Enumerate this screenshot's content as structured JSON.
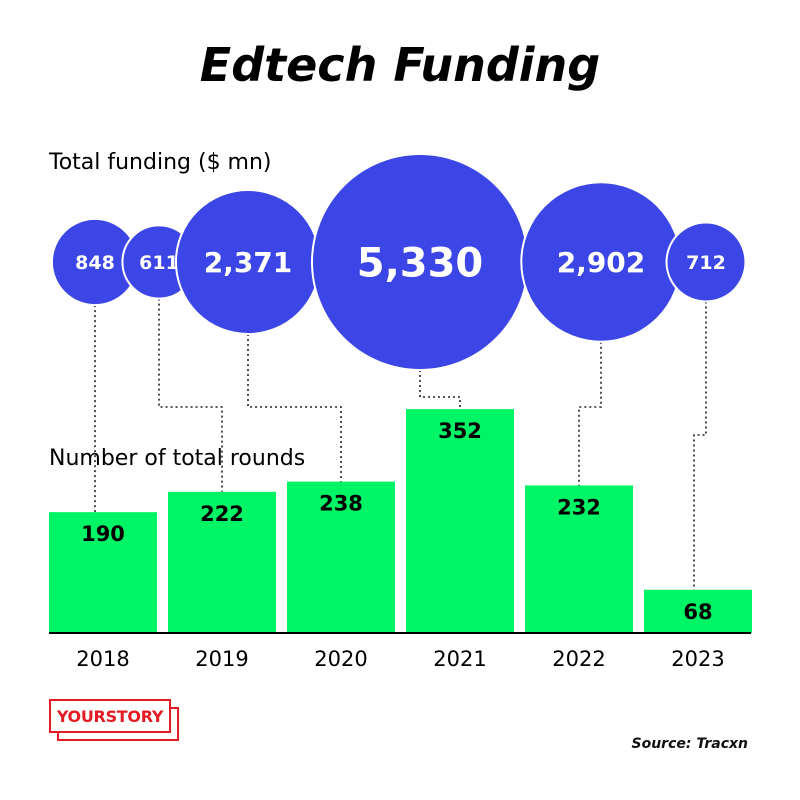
{
  "title": "Edtech Funding",
  "funding_label": "Total funding ($ mn)",
  "rounds_label": "Number of total rounds",
  "source": "Source: Tracxn",
  "logo_text": "YOURSTORY",
  "colors": {
    "bubble": "#3c46e6",
    "bar": "#00f566",
    "logo": "#e31b23"
  },
  "chart_data": [
    {
      "type": "scatter",
      "title": "Total funding ($ mn)",
      "categories": [
        "2018",
        "2019",
        "2020",
        "2021",
        "2022",
        "2023"
      ],
      "values": [
        848,
        611,
        2371,
        5330,
        2902,
        712
      ],
      "labels": [
        "848",
        "611",
        "2,371",
        "5,330",
        "2,902",
        "712"
      ],
      "encoding": "bubble size"
    },
    {
      "type": "bar",
      "title": "Number of total rounds",
      "categories": [
        "2018",
        "2019",
        "2020",
        "2021",
        "2022",
        "2023"
      ],
      "values": [
        190,
        222,
        238,
        352,
        232,
        68
      ],
      "labels": [
        "190",
        "222",
        "238",
        "352",
        "232",
        "68"
      ]
    }
  ]
}
